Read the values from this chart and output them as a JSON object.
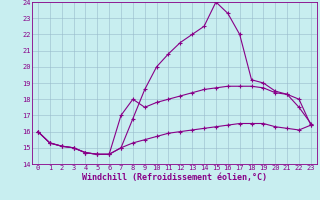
{
  "xlabel": "Windchill (Refroidissement éolien,°C)",
  "xlim": [
    -0.5,
    23.5
  ],
  "ylim": [
    14,
    24
  ],
  "xticks": [
    0,
    1,
    2,
    3,
    4,
    5,
    6,
    7,
    8,
    9,
    10,
    11,
    12,
    13,
    14,
    15,
    16,
    17,
    18,
    19,
    20,
    21,
    22,
    23
  ],
  "yticks": [
    14,
    15,
    16,
    17,
    18,
    19,
    20,
    21,
    22,
    23,
    24
  ],
  "bg_color": "#c8eef0",
  "line_color": "#880088",
  "grid_color": "#99bbcc",
  "line1_x": [
    0,
    1,
    2,
    3,
    4,
    5,
    6,
    7,
    8,
    9,
    10,
    11,
    12,
    13,
    14,
    15,
    16,
    17,
    18,
    19,
    20,
    21,
    22,
    23
  ],
  "line1_y": [
    16.0,
    15.3,
    15.1,
    15.0,
    14.7,
    14.6,
    14.6,
    15.0,
    16.8,
    18.6,
    20.0,
    20.8,
    21.5,
    22.0,
    22.5,
    24.0,
    23.3,
    22.0,
    19.2,
    19.0,
    18.5,
    18.3,
    17.5,
    16.5
  ],
  "line2_x": [
    0,
    1,
    2,
    3,
    4,
    5,
    6,
    7,
    8,
    9,
    10,
    11,
    12,
    13,
    14,
    15,
    16,
    17,
    18,
    19,
    20,
    21,
    22,
    23
  ],
  "line2_y": [
    16.0,
    15.3,
    15.1,
    15.0,
    14.7,
    14.6,
    14.6,
    17.0,
    18.0,
    17.5,
    17.8,
    18.0,
    18.2,
    18.4,
    18.6,
    18.7,
    18.8,
    18.8,
    18.8,
    18.7,
    18.4,
    18.3,
    18.0,
    16.4
  ],
  "line3_x": [
    0,
    1,
    2,
    3,
    4,
    5,
    6,
    7,
    8,
    9,
    10,
    11,
    12,
    13,
    14,
    15,
    16,
    17,
    18,
    19,
    20,
    21,
    22,
    23
  ],
  "line3_y": [
    16.0,
    15.3,
    15.1,
    15.0,
    14.7,
    14.6,
    14.6,
    15.0,
    15.3,
    15.5,
    15.7,
    15.9,
    16.0,
    16.1,
    16.2,
    16.3,
    16.4,
    16.5,
    16.5,
    16.5,
    16.3,
    16.2,
    16.1,
    16.4
  ],
  "marker": "+",
  "markersize": 3,
  "linewidth": 0.8,
  "tick_fontsize": 5,
  "xlabel_fontsize": 6
}
